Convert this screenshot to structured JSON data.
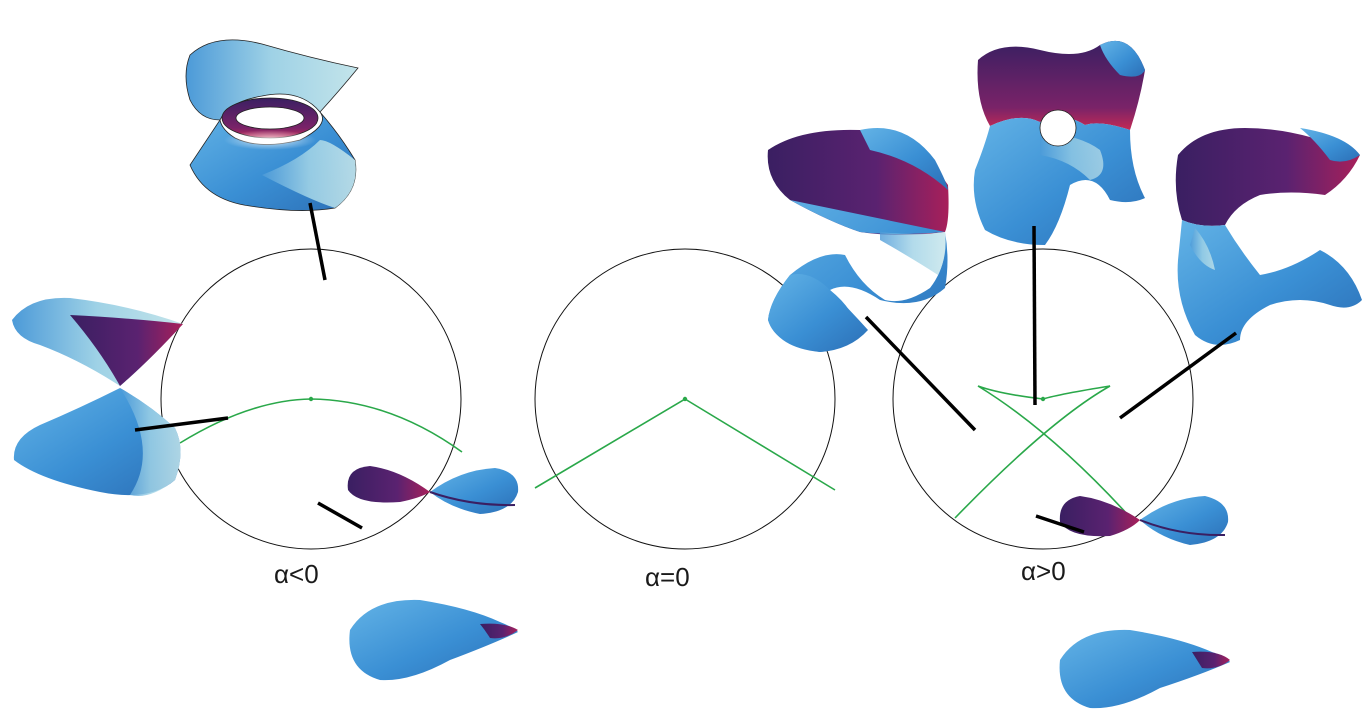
{
  "panels": [
    {
      "label": "α<0"
    },
    {
      "label": "α=0"
    },
    {
      "label": "α>0"
    }
  ],
  "colors": {
    "circle": "#111111",
    "curve": "#2aa84a",
    "pointer": "#000000",
    "surface_blue": "#3d93d6",
    "surface_light": "#a9d6e4",
    "surface_purple": "#4a1f6a",
    "surface_magenta": "#9a1f55"
  },
  "icons": [
    "twisted-surface",
    "cone-surface",
    "figure-eight-surface",
    "saddle-surface",
    "holed-surface",
    "c-shaped-surface"
  ]
}
